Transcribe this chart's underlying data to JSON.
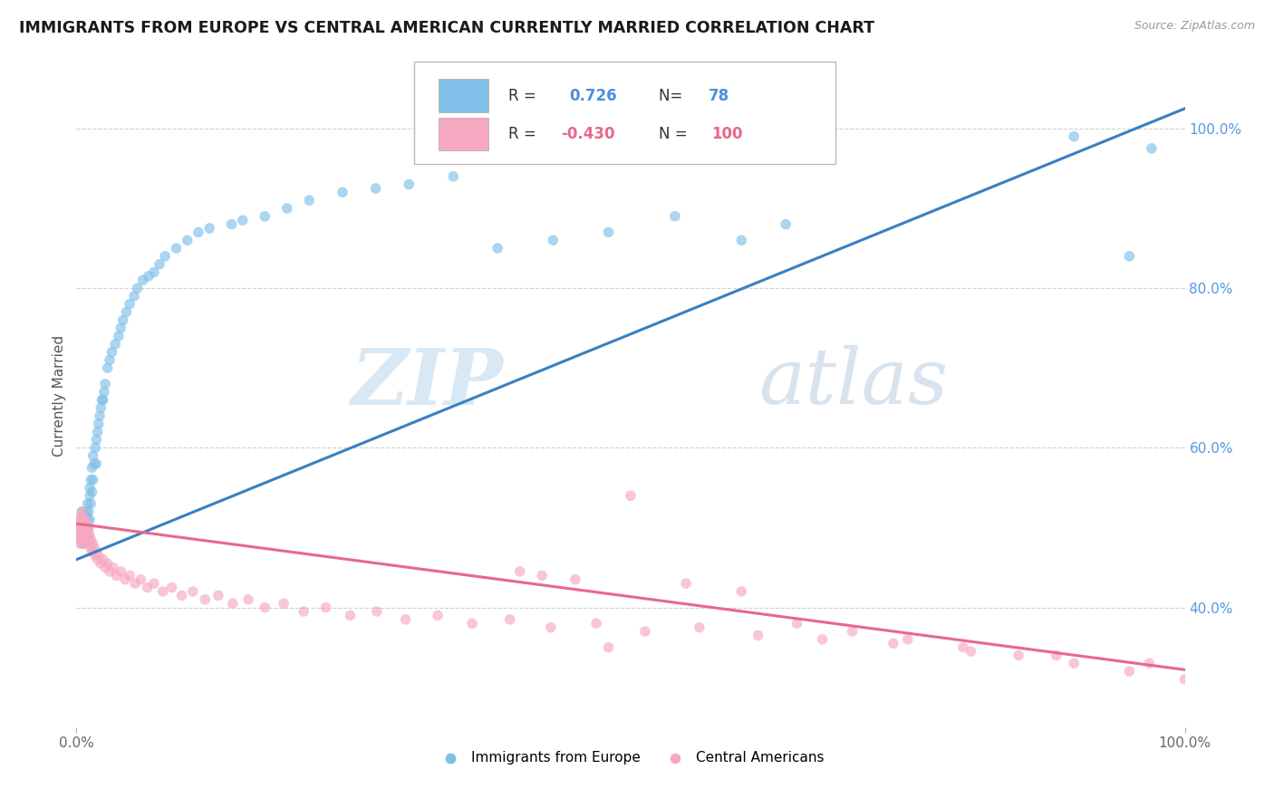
{
  "title": "IMMIGRANTS FROM EUROPE VS CENTRAL AMERICAN CURRENTLY MARRIED CORRELATION CHART",
  "source": "Source: ZipAtlas.com",
  "ylabel": "Currently Married",
  "xlim": [
    0.0,
    1.0
  ],
  "ylim": [
    0.25,
    1.08
  ],
  "blue_color": "#7fbfe8",
  "pink_color": "#f7a8c0",
  "blue_line_color": "#3a7fc1",
  "pink_line_color": "#e8688a",
  "watermark_zip": "ZIP",
  "watermark_atlas": "atlas",
  "background_color": "#ffffff",
  "grid_color": "#d0d0d0",
  "scatter_alpha": 0.65,
  "scatter_size": 70,
  "blue_scatter_x": [
    0.005,
    0.005,
    0.005,
    0.005,
    0.005,
    0.007,
    0.007,
    0.007,
    0.008,
    0.008,
    0.008,
    0.008,
    0.009,
    0.009,
    0.01,
    0.01,
    0.01,
    0.011,
    0.011,
    0.012,
    0.012,
    0.012,
    0.013,
    0.013,
    0.014,
    0.014,
    0.015,
    0.015,
    0.016,
    0.017,
    0.018,
    0.018,
    0.019,
    0.02,
    0.021,
    0.022,
    0.023,
    0.024,
    0.025,
    0.026,
    0.028,
    0.03,
    0.032,
    0.035,
    0.038,
    0.04,
    0.042,
    0.045,
    0.048,
    0.052,
    0.055,
    0.06,
    0.065,
    0.07,
    0.075,
    0.08,
    0.09,
    0.1,
    0.11,
    0.12,
    0.14,
    0.15,
    0.17,
    0.19,
    0.21,
    0.24,
    0.27,
    0.3,
    0.34,
    0.38,
    0.43,
    0.48,
    0.54,
    0.6,
    0.9,
    0.97,
    0.95,
    0.64
  ],
  "blue_scatter_y": [
    0.5,
    0.49,
    0.51,
    0.48,
    0.52,
    0.495,
    0.505,
    0.515,
    0.5,
    0.49,
    0.51,
    0.48,
    0.52,
    0.5,
    0.51,
    0.53,
    0.49,
    0.52,
    0.5,
    0.54,
    0.51,
    0.55,
    0.53,
    0.56,
    0.545,
    0.575,
    0.56,
    0.59,
    0.58,
    0.6,
    0.61,
    0.58,
    0.62,
    0.63,
    0.64,
    0.65,
    0.66,
    0.66,
    0.67,
    0.68,
    0.7,
    0.71,
    0.72,
    0.73,
    0.74,
    0.75,
    0.76,
    0.77,
    0.78,
    0.79,
    0.8,
    0.81,
    0.815,
    0.82,
    0.83,
    0.84,
    0.85,
    0.86,
    0.87,
    0.875,
    0.88,
    0.885,
    0.89,
    0.9,
    0.91,
    0.92,
    0.925,
    0.93,
    0.94,
    0.85,
    0.86,
    0.87,
    0.89,
    0.86,
    0.99,
    0.975,
    0.84,
    0.88
  ],
  "pink_scatter_x": [
    0.002,
    0.002,
    0.002,
    0.003,
    0.003,
    0.003,
    0.003,
    0.004,
    0.004,
    0.004,
    0.004,
    0.005,
    0.005,
    0.005,
    0.005,
    0.006,
    0.006,
    0.006,
    0.007,
    0.007,
    0.007,
    0.008,
    0.008,
    0.008,
    0.009,
    0.009,
    0.009,
    0.01,
    0.01,
    0.011,
    0.011,
    0.012,
    0.012,
    0.013,
    0.013,
    0.014,
    0.015,
    0.015,
    0.016,
    0.017,
    0.018,
    0.019,
    0.02,
    0.022,
    0.024,
    0.026,
    0.028,
    0.03,
    0.033,
    0.036,
    0.04,
    0.044,
    0.048,
    0.053,
    0.058,
    0.064,
    0.07,
    0.078,
    0.086,
    0.095,
    0.105,
    0.116,
    0.128,
    0.141,
    0.155,
    0.17,
    0.187,
    0.205,
    0.225,
    0.247,
    0.271,
    0.297,
    0.326,
    0.357,
    0.391,
    0.428,
    0.469,
    0.513,
    0.562,
    0.615,
    0.673,
    0.737,
    0.807,
    0.884,
    0.968,
    0.4,
    0.45,
    0.5,
    0.55,
    0.6,
    0.65,
    0.7,
    0.75,
    0.8,
    0.85,
    0.9,
    0.95,
    1.0,
    0.42,
    0.48
  ],
  "pink_scatter_y": [
    0.5,
    0.51,
    0.49,
    0.51,
    0.5,
    0.49,
    0.48,
    0.505,
    0.495,
    0.515,
    0.485,
    0.5,
    0.51,
    0.49,
    0.52,
    0.5,
    0.49,
    0.51,
    0.495,
    0.505,
    0.48,
    0.5,
    0.49,
    0.51,
    0.495,
    0.485,
    0.505,
    0.49,
    0.5,
    0.485,
    0.495,
    0.48,
    0.49,
    0.475,
    0.485,
    0.47,
    0.48,
    0.47,
    0.475,
    0.465,
    0.47,
    0.46,
    0.465,
    0.455,
    0.46,
    0.45,
    0.455,
    0.445,
    0.45,
    0.44,
    0.445,
    0.435,
    0.44,
    0.43,
    0.435,
    0.425,
    0.43,
    0.42,
    0.425,
    0.415,
    0.42,
    0.41,
    0.415,
    0.405,
    0.41,
    0.4,
    0.405,
    0.395,
    0.4,
    0.39,
    0.395,
    0.385,
    0.39,
    0.38,
    0.385,
    0.375,
    0.38,
    0.37,
    0.375,
    0.365,
    0.36,
    0.355,
    0.345,
    0.34,
    0.33,
    0.445,
    0.435,
    0.54,
    0.43,
    0.42,
    0.38,
    0.37,
    0.36,
    0.35,
    0.34,
    0.33,
    0.32,
    0.31,
    0.44,
    0.35
  ],
  "blue_line": {
    "x0": 0.0,
    "y0": 0.46,
    "x1": 1.0,
    "y1": 1.025
  },
  "pink_line": {
    "x0": 0.0,
    "y0": 0.505,
    "x1": 1.0,
    "y1": 0.322
  },
  "legend_blue_r": "R =",
  "legend_blue_r_val": "0.726",
  "legend_blue_n": "N=",
  "legend_blue_n_val": "78",
  "legend_pink_r": "R =",
  "legend_pink_r_val": "-0.430",
  "legend_pink_n": "N =",
  "legend_pink_n_val": "100",
  "legend_blue_color": "#4a90d9",
  "legend_pink_color": "#e8688a",
  "bottom_legend_blue": "Immigrants from Europe",
  "bottom_legend_pink": "Central Americans"
}
